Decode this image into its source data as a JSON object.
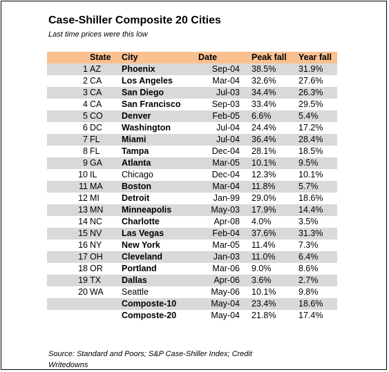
{
  "title": "Case-Shiller Composite 20 Cities",
  "subtitle": "Last time prices were this low",
  "source": "Source: Standard and Poors; S&P Case-Shiller Index; Credit Writedowns",
  "colors": {
    "header": "#FAC090",
    "shade": "#D9D9D9"
  },
  "chart_data": {
    "type": "table",
    "title": "Case-Shiller Composite 20 Cities",
    "subtitle": "Last time prices were this low",
    "columns": [
      "State",
      "City",
      "Date",
      "Peak fall",
      "Year fall"
    ],
    "rows": [
      {
        "num": "1",
        "state": "AZ",
        "city": "Phoenix",
        "date": "Sep-04",
        "peak": "38.5%",
        "year": "31.9%",
        "shade": true,
        "bold": true
      },
      {
        "num": "2",
        "state": "CA",
        "city": "Los Angeles",
        "date": "Mar-04",
        "peak": "32.6%",
        "year": "27.6%",
        "shade": false,
        "bold": true
      },
      {
        "num": "3",
        "state": "CA",
        "city": "San Diego",
        "date": "Jul-03",
        "peak": "34.4%",
        "year": "26.3%",
        "shade": true,
        "bold": true
      },
      {
        "num": "4",
        "state": "CA",
        "city": "San Francisco",
        "date": "Sep-03",
        "peak": "33.4%",
        "year": "29.5%",
        "shade": false,
        "bold": true
      },
      {
        "num": "5",
        "state": "CO",
        "city": "Denver",
        "date": "Feb-05",
        "peak": "6.6%",
        "year": "5.4%",
        "shade": true,
        "bold": true
      },
      {
        "num": "6",
        "state": "DC",
        "city": "Washington",
        "date": "Jul-04",
        "peak": "24.4%",
        "year": "17.2%",
        "shade": false,
        "bold": true
      },
      {
        "num": "7",
        "state": "FL",
        "city": "Miami",
        "date": "Jul-04",
        "peak": "36.4%",
        "year": "28.4%",
        "shade": true,
        "bold": true
      },
      {
        "num": "8",
        "state": "FL",
        "city": "Tampa",
        "date": "Dec-04",
        "peak": "28.1%",
        "year": "18.5%",
        "shade": false,
        "bold": true
      },
      {
        "num": "9",
        "state": "GA",
        "city": "Atlanta",
        "date": "Mar-05",
        "peak": "10.1%",
        "year": "9.5%",
        "shade": true,
        "bold": true
      },
      {
        "num": "10",
        "state": "IL",
        "city": "Chicago",
        "date": "Dec-04",
        "peak": "12.3%",
        "year": "10.1%",
        "shade": false,
        "bold": false
      },
      {
        "num": "11",
        "state": "MA",
        "city": "Boston",
        "date": "Mar-04",
        "peak": "11.8%",
        "year": "5.7%",
        "shade": true,
        "bold": true
      },
      {
        "num": "12",
        "state": "MI",
        "city": "Detroit",
        "date": "Jan-99",
        "peak": "29.0%",
        "year": "18.6%",
        "shade": false,
        "bold": true
      },
      {
        "num": "13",
        "state": "MN",
        "city": "Minneapolis",
        "date": "May-03",
        "peak": "17.9%",
        "year": "14.4%",
        "shade": true,
        "bold": true
      },
      {
        "num": "14",
        "state": "NC",
        "city": "Charlotte",
        "date": "Apr-08",
        "peak": "4.0%",
        "year": "3.5%",
        "shade": false,
        "bold": true
      },
      {
        "num": "15",
        "state": "NV",
        "city": "Las Vegas",
        "date": "Feb-04",
        "peak": "37.6%",
        "year": "31.3%",
        "shade": true,
        "bold": true
      },
      {
        "num": "16",
        "state": "NY",
        "city": "New York",
        "date": "Mar-05",
        "peak": "11.4%",
        "year": "7.3%",
        "shade": false,
        "bold": true
      },
      {
        "num": "17",
        "state": "OH",
        "city": "Cleveland",
        "date": "Jan-03",
        "peak": "11.0%",
        "year": "6.4%",
        "shade": true,
        "bold": true
      },
      {
        "num": "18",
        "state": "OR",
        "city": "Portland",
        "date": "Mar-06",
        "peak": "9.0%",
        "year": "8.6%",
        "shade": false,
        "bold": true
      },
      {
        "num": "19",
        "state": "TX",
        "city": "Dallas",
        "date": "Apr-06",
        "peak": "3.6%",
        "year": "2.7%",
        "shade": true,
        "bold": true
      },
      {
        "num": "20",
        "state": "WA",
        "city": "Seattle",
        "date": "May-06",
        "peak": "10.1%",
        "year": "9.8%",
        "shade": false,
        "bold": false
      },
      {
        "num": "",
        "state": "",
        "city": "Composte-10",
        "date": "May-04",
        "peak": "23.4%",
        "year": "18.6%",
        "shade": true,
        "bold": true
      },
      {
        "num": "",
        "state": "",
        "city": "Composte-20",
        "date": "May-04",
        "peak": "21.8%",
        "year": "17.4%",
        "shade": false,
        "bold": true
      }
    ]
  }
}
